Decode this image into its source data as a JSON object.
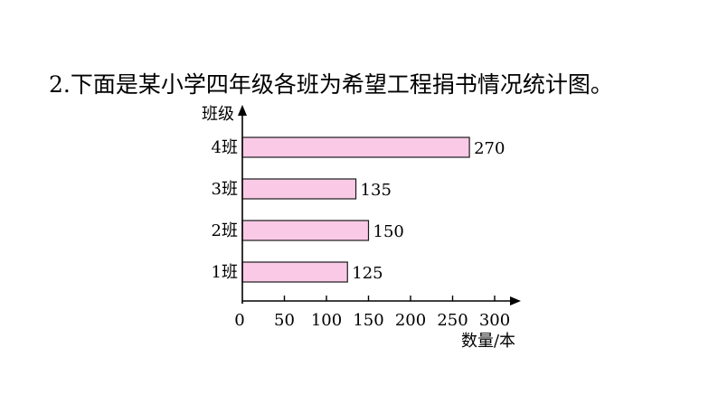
{
  "question": {
    "number": "2.",
    "text": "下面是某小学四年级各班为希望工程捐书情况统计图。"
  },
  "chart_data": {
    "type": "bar",
    "orientation": "horizontal",
    "title": "",
    "ylabel": "班级",
    "xlabel": "数量/本",
    "categories": [
      "1班",
      "2班",
      "3班",
      "4班"
    ],
    "values": [
      125,
      150,
      135,
      270
    ],
    "xlim": [
      0,
      300
    ],
    "xticks": [
      "0",
      "50",
      "100",
      "150",
      "200",
      "250",
      "300"
    ],
    "bar_color": "#f9c9e6",
    "bar_edge_color": "#1a1a1a",
    "grid": false,
    "legend": "none"
  }
}
